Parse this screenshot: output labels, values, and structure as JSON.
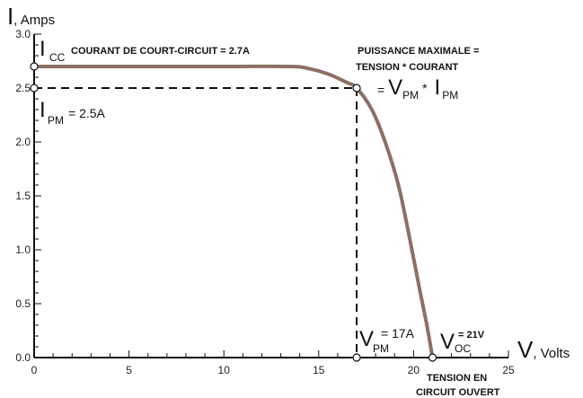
{
  "chart_data": {
    "type": "line",
    "ylabel_symbol": "I",
    "ylabel_unit": ", Amps",
    "xlabel_symbol": "V",
    "xlabel_unit": ", Volts",
    "xlim": [
      0,
      25
    ],
    "ylim": [
      0,
      3.0
    ],
    "xticks": [
      0,
      5,
      10,
      15,
      20,
      25
    ],
    "yticks": [
      0.0,
      0.5,
      1.0,
      1.5,
      2.0,
      2.5,
      3.0
    ],
    "xtick_labels": [
      "0",
      "5",
      "10",
      "15",
      "20",
      "25"
    ],
    "ytick_labels": [
      "0.0",
      "0.5",
      "1.0",
      "1.5",
      "2.0",
      "2.5",
      "3.0"
    ],
    "grid": false,
    "series": [
      {
        "color": "#8c7064",
        "x": [
          0,
          5,
          10,
          13.5,
          14.5,
          15.5,
          16.5,
          17,
          17.8,
          18.5,
          19.2,
          19.8,
          20.3,
          20.7,
          21
        ],
        "y": [
          2.7,
          2.7,
          2.7,
          2.7,
          2.68,
          2.63,
          2.55,
          2.5,
          2.3,
          2.0,
          1.6,
          1.1,
          0.65,
          0.3,
          0.0
        ]
      }
    ],
    "annotations": {
      "icc_symbol": "I",
      "icc_sub": "CC",
      "icc_text": "COURANT DE COURT-CIRCUIT = 2.7A",
      "max_power_line1": "PUISSANCE MAXIMALE =",
      "max_power_line2": "TENSION * COURANT",
      "eq_prefix": "=",
      "eq_v": "V",
      "eq_v_sub": "PM",
      "eq_star": "*",
      "eq_i": "I",
      "eq_i_sub": "PM",
      "ipm_symbol": "I",
      "ipm_sub": "PM",
      "ipm_text": "= 2.5A",
      "vpm_symbol": "V",
      "vpm_sub": "PM",
      "vpm_text": "= 17A",
      "voc_symbol": "V",
      "voc_sub": "OC",
      "voc_text": "= 21V",
      "open_circuit_line1": "TENSION EN",
      "open_circuit_line2": "CIRCUIT OUVERT"
    },
    "points": {
      "isc": {
        "x": 0,
        "y": 2.7
      },
      "ipm": {
        "x": 0,
        "y": 2.5
      },
      "mpp": {
        "x": 17,
        "y": 2.5
      },
      "vpm": {
        "x": 17,
        "y": 0
      },
      "voc": {
        "x": 21,
        "y": 0
      }
    }
  }
}
